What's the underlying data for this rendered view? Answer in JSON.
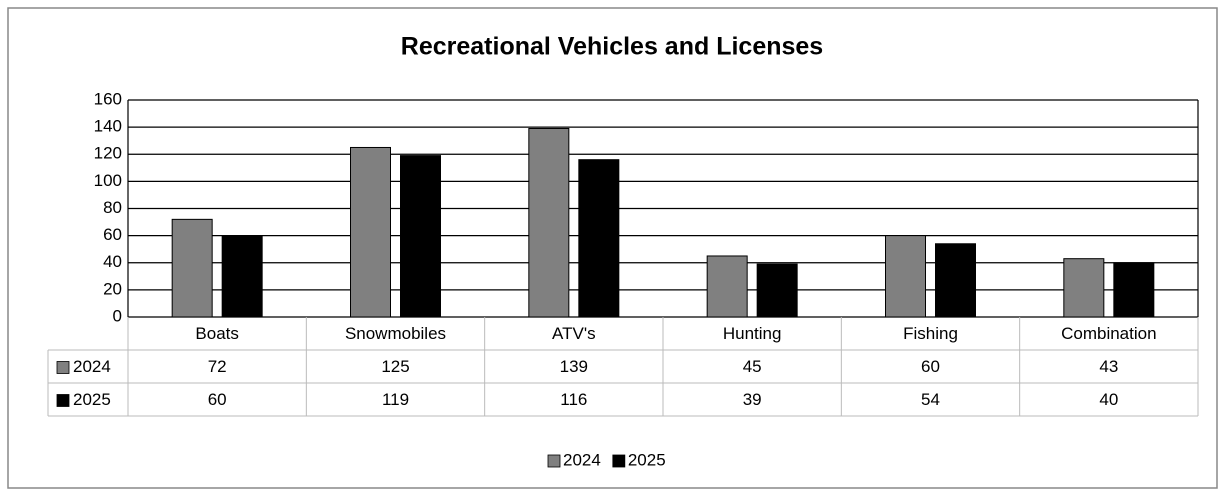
{
  "chart_data": {
    "type": "bar",
    "title": "Recreational Vehicles and Licenses",
    "categories": [
      "Boats",
      "Snowmobiles",
      "ATV's",
      "Hunting",
      "Fishing",
      "Combination"
    ],
    "series": [
      {
        "name": "2024",
        "color": "#808080",
        "values": [
          72,
          125,
          139,
          45,
          60,
          43
        ]
      },
      {
        "name": "2025",
        "color": "#000000",
        "values": [
          60,
          119,
          116,
          39,
          54,
          40
        ]
      }
    ],
    "ylim": [
      0,
      160
    ],
    "yticks": [
      0,
      20,
      40,
      60,
      80,
      100,
      120,
      140,
      160
    ],
    "grid": true,
    "data_table": true,
    "legend": "bottom"
  }
}
